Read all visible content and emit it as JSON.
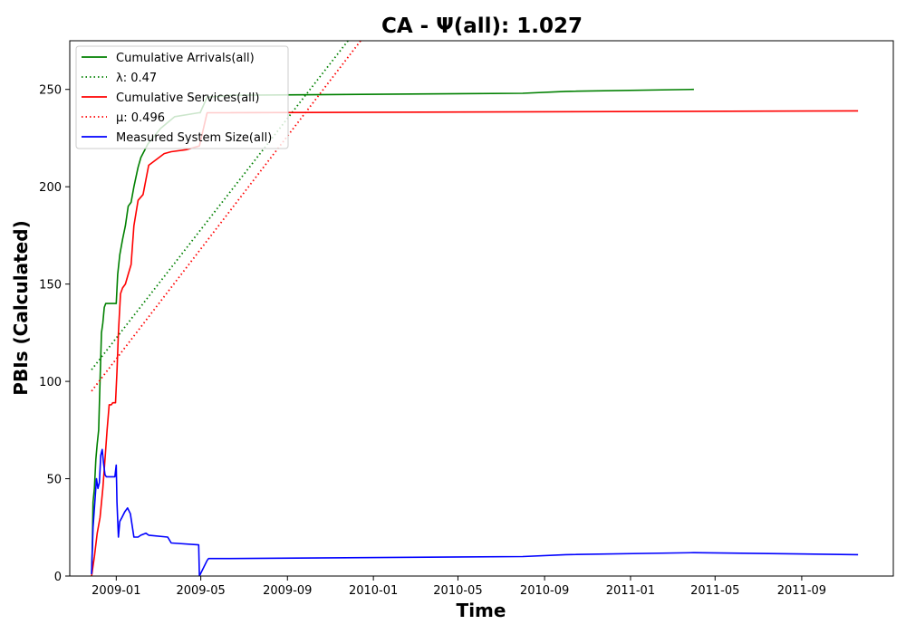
{
  "chart_data": {
    "type": "line",
    "title": "CA -  Ψ(all): 1.027",
    "xlabel": "Time",
    "ylabel": "PBIs (Calculated)",
    "xlim": [
      "2008-10-27",
      "2012-01-09"
    ],
    "ylim": [
      0,
      275
    ],
    "x_ticks": [
      "2009-01",
      "2009-05",
      "2009-09",
      "2010-01",
      "2010-05",
      "2010-09",
      "2011-01",
      "2011-05",
      "2011-09"
    ],
    "y_ticks": [
      0,
      50,
      100,
      150,
      200,
      250
    ],
    "grid": false,
    "legend_position": "top-left",
    "series": [
      {
        "name": "Cumulative Arrivals(all)",
        "label_html": "Cumulative Arrivals(all)",
        "color": "#008000",
        "style": "solid",
        "x": [
          "2008-11-27",
          "2008-11-28",
          "2008-11-29",
          "2008-12-01",
          "2008-12-03",
          "2008-12-05",
          "2008-12-07",
          "2008-12-09",
          "2008-12-11",
          "2008-12-13",
          "2008-12-15",
          "2008-12-17",
          "2008-12-19",
          "2008-12-21",
          "2008-12-28",
          "2009-01-01",
          "2009-01-03",
          "2009-01-06",
          "2009-01-10",
          "2009-01-14",
          "2009-01-18",
          "2009-01-22",
          "2009-01-26",
          "2009-02-01",
          "2009-02-05",
          "2009-02-15",
          "2009-03-05",
          "2009-03-25",
          "2009-04-28",
          "2009-04-30",
          "2009-05-10",
          "2009-06-15",
          "2010-08-01",
          "2010-10-01",
          "2011-04-01"
        ],
        "y": [
          1,
          15,
          38,
          45,
          60,
          68,
          75,
          100,
          125,
          130,
          138,
          140,
          140,
          140,
          140,
          140,
          155,
          165,
          173,
          180,
          190,
          192,
          200,
          210,
          215,
          222,
          230,
          236,
          238,
          238,
          246,
          247,
          248,
          249,
          250
        ]
      },
      {
        "name": "λ: 0.47",
        "label_html": "λ: 0.47",
        "color": "#008000",
        "style": "dotted",
        "x": [
          "2008-11-27",
          "2009-11-26"
        ],
        "y": [
          106,
          275
        ]
      },
      {
        "name": "Cumulative Services(all)",
        "label_html": "Cumulative Services(all)",
        "color": "#ff0000",
        "style": "solid",
        "x": [
          "2008-11-27",
          "2008-12-01",
          "2008-12-05",
          "2008-12-09",
          "2008-12-13",
          "2008-12-16",
          "2008-12-19",
          "2008-12-22",
          "2008-12-25",
          "2008-12-27",
          "2008-12-29",
          "2008-12-31",
          "2009-01-02",
          "2009-01-04",
          "2009-01-07",
          "2009-01-10",
          "2009-01-14",
          "2009-01-18",
          "2009-01-22",
          "2009-01-26",
          "2009-02-01",
          "2009-02-08",
          "2009-02-16",
          "2009-03-10",
          "2009-03-20",
          "2009-04-10",
          "2009-04-20",
          "2009-04-29",
          "2009-05-10",
          "2009-06-01",
          "2011-11-20"
        ],
        "y": [
          0,
          10,
          22,
          30,
          45,
          60,
          75,
          88,
          88,
          89,
          89,
          89,
          105,
          125,
          145,
          148,
          150,
          155,
          160,
          180,
          193,
          196,
          211,
          217,
          218,
          219,
          220,
          221,
          238,
          238,
          239
        ]
      },
      {
        "name": "μ: 0.496",
        "label_html": "μ: 0.496",
        "color": "#ff0000",
        "style": "dotted",
        "x": [
          "2008-11-27",
          "2009-12-14"
        ],
        "y": [
          95,
          275
        ]
      },
      {
        "name": "Measured System Size(all)",
        "label_html": "Measured System Size(all)",
        "color": "#0000ff",
        "style": "solid",
        "x": [
          "2008-11-27",
          "2008-11-29",
          "2008-12-02",
          "2008-12-04",
          "2008-12-06",
          "2008-12-08",
          "2008-12-10",
          "2008-12-12",
          "2008-12-14",
          "2008-12-16",
          "2008-12-18",
          "2008-12-20",
          "2008-12-22",
          "2008-12-25",
          "2008-12-30",
          "2009-01-01",
          "2009-01-02",
          "2009-01-04",
          "2009-01-06",
          "2009-01-09",
          "2009-01-13",
          "2009-01-17",
          "2009-01-21",
          "2009-01-26",
          "2009-02-01",
          "2009-02-05",
          "2009-02-12",
          "2009-02-16",
          "2009-03-15",
          "2009-03-20",
          "2009-04-28",
          "2009-04-29",
          "2009-05-10",
          "2009-05-12",
          "2009-06-01",
          "2010-08-01",
          "2010-10-01",
          "2011-04-01",
          "2011-11-20"
        ],
        "y": [
          1,
          25,
          40,
          50,
          45,
          48,
          62,
          65,
          58,
          52,
          51,
          51,
          51,
          51,
          51,
          57,
          38,
          20,
          28,
          30,
          33,
          35,
          32,
          20,
          20,
          21,
          22,
          21,
          20,
          17,
          16,
          0,
          8,
          9,
          9,
          10,
          11,
          12,
          11
        ]
      }
    ]
  }
}
